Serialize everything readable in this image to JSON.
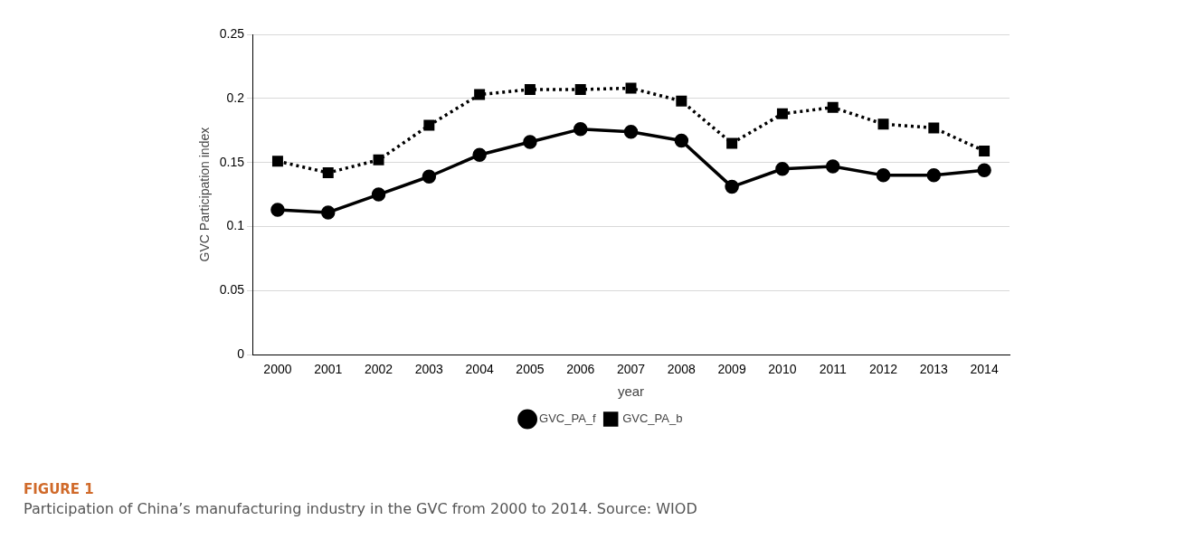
{
  "chart_data": {
    "type": "line",
    "xlabel": "year",
    "ylabel": "GVC Participation index",
    "categories": [
      "2000",
      "2001",
      "2002",
      "2003",
      "2004",
      "2005",
      "2006",
      "2007",
      "2008",
      "2009",
      "2010",
      "2011",
      "2012",
      "2013",
      "2014"
    ],
    "series": [
      {
        "name": "GVC_PA_f",
        "color": "#000000",
        "marker": "circle",
        "line_style": "solid",
        "values": [
          0.113,
          0.111,
          0.125,
          0.139,
          0.156,
          0.166,
          0.176,
          0.174,
          0.167,
          0.131,
          0.145,
          0.147,
          0.14,
          0.14,
          0.144
        ]
      },
      {
        "name": "GVC_PA_b",
        "color": "#000000",
        "marker": "square",
        "line_style": "dotted",
        "values": [
          0.151,
          0.142,
          0.152,
          0.179,
          0.203,
          0.207,
          0.207,
          0.208,
          0.198,
          0.165,
          0.188,
          0.193,
          0.18,
          0.177,
          0.159
        ]
      }
    ],
    "ylim": [
      0,
      0.25
    ],
    "yticks": [
      0,
      0.05,
      0.1,
      0.15,
      0.2,
      0.25
    ],
    "grid": "y",
    "legend": "bottom",
    "annotations": [
      "FIGURE 1",
      "Participation of China’s manufacturing industry in the GVC from 2000 to 2014. Source: WIOD"
    ]
  }
}
